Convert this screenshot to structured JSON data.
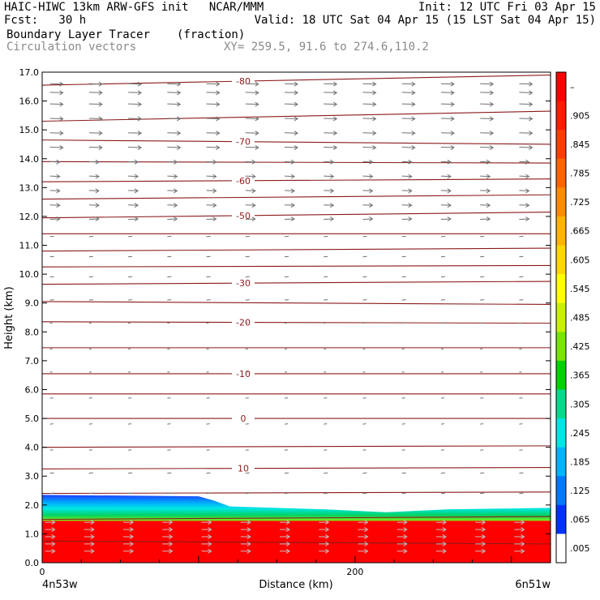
{
  "header": {
    "title_left": "HAIC-HIWC 13km ARW-GFS init   NCAR/MMM",
    "init": "Init: 12 UTC Fri 03 Apr 15",
    "fcst": "Fcst:   30 h",
    "valid": "Valid: 18 UTC Sat 04 Apr 15 (15 LST Sat 04 Apr 15)",
    "field_name": "Boundary Layer Tracer",
    "field_units": "(fraction)",
    "vector_label": "Circulation vectors",
    "xy_range": "XY= 259.5, 91.6 to 274.6,110.2"
  },
  "colors": {
    "contour": "#8b1a1a",
    "vector": "#707070",
    "fill_high": "#ff0000"
  },
  "chart_data": {
    "type": "heatmap",
    "xlabel": "Distance (km)",
    "ylabel": "Height (km)",
    "xlim": [
      0,
      325
    ],
    "ylim": [
      0,
      17
    ],
    "x_ticks": [
      0,
      200
    ],
    "x_tick_labels": [
      "0",
      "200"
    ],
    "y_ticks": [
      0,
      1,
      2,
      3,
      4,
      5,
      6,
      7,
      8,
      9,
      10,
      11,
      12,
      13,
      14,
      15,
      16,
      17
    ],
    "y_tick_labels": [
      "0.0",
      "1.0",
      "2.0",
      "3.0",
      "4.0",
      "5.0",
      "6.0",
      "7.0",
      "8.0",
      "9.0",
      "10.0",
      "11.0",
      "12.0",
      "13.0",
      "14.0",
      "15.0",
      "16.0",
      "17.0"
    ],
    "x_endpoints": {
      "left": "4n53w",
      "right": "6n51w"
    },
    "colorbar": {
      "labels": [
        "–",
        ".905",
        ".845",
        ".785",
        ".725",
        ".665",
        ".605",
        ".545",
        ".485",
        ".425",
        ".365",
        ".305",
        ".245",
        ".185",
        ".125",
        ".065",
        ".005"
      ],
      "colors": [
        "#ff0000",
        "#ff1a00",
        "#ff3c00",
        "#ff6400",
        "#ff8c00",
        "#ffb400",
        "#ffd700",
        "#ffff00",
        "#c8f000",
        "#78e600",
        "#00d200",
        "#00dc8c",
        "#00e6e6",
        "#00b4ff",
        "#0078ff",
        "#0032ff",
        "#ffffff"
      ]
    },
    "tracer_top_km": [
      {
        "x": 0,
        "y": 2.35
      },
      {
        "x": 100,
        "y": 2.3
      },
      {
        "x": 110,
        "y": 2.15
      },
      {
        "x": 120,
        "y": 1.95
      },
      {
        "x": 180,
        "y": 1.85
      },
      {
        "x": 220,
        "y": 1.75
      },
      {
        "x": 260,
        "y": 1.85
      },
      {
        "x": 325,
        "y": 1.9
      }
    ],
    "isotherms": [
      {
        "label": "-80",
        "y0": 16.55,
        "y1": 16.9
      },
      {
        "label": "",
        "y0": 15.3,
        "y1": 15.65
      },
      {
        "label": "-70",
        "y0": 14.65,
        "y1": 14.5
      },
      {
        "label": "",
        "y0": 13.9,
        "y1": 13.85
      },
      {
        "label": "-60",
        "y0": 13.2,
        "y1": 13.3
      },
      {
        "label": "",
        "y0": 12.6,
        "y1": 12.75
      },
      {
        "label": "-50",
        "y0": 11.95,
        "y1": 12.15
      },
      {
        "label": "",
        "y0": 11.4,
        "y1": 11.4
      },
      {
        "label": "",
        "y0": 10.8,
        "y1": 10.9
      },
      {
        "label": "",
        "y0": 10.25,
        "y1": 10.3
      },
      {
        "label": "-30",
        "y0": 9.65,
        "y1": 9.75
      },
      {
        "label": "",
        "y0": 9.05,
        "y1": 8.95
      },
      {
        "label": "-20",
        "y0": 8.35,
        "y1": 8.3
      },
      {
        "label": "",
        "y0": 7.45,
        "y1": 7.45
      },
      {
        "label": "-10",
        "y0": 6.55,
        "y1": 6.55
      },
      {
        "label": "",
        "y0": 5.85,
        "y1": 5.85
      },
      {
        "label": "0",
        "y0": 5.0,
        "y1": 5.0
      },
      {
        "label": "",
        "y0": 4.0,
        "y1": 4.05
      },
      {
        "label": "10",
        "y0": 3.25,
        "y1": 3.3
      },
      {
        "label": "",
        "y0": 2.4,
        "y1": 2.45
      },
      {
        "label": "",
        "y0": 1.5,
        "y1": 1.6
      },
      {
        "label": "",
        "y0": 0.75,
        "y1": 0.65
      }
    ],
    "vectors": {
      "x_positions": [
        5,
        30,
        55,
        80,
        105,
        130,
        155,
        180,
        205,
        230,
        255,
        280,
        305
      ],
      "levels_km": [
        16.6,
        16.3,
        15.9,
        15.4,
        14.9,
        14.4,
        13.9,
        13.4,
        12.9,
        12.4,
        11.9,
        11.3,
        10.6,
        9.9,
        9.1,
        8.3,
        7.4,
        6.6,
        5.7,
        4.8,
        3.9,
        3.1,
        2.4
      ],
      "low_levels_km": [
        1.4,
        1.15,
        0.9,
        0.65,
        0.4
      ]
    }
  }
}
